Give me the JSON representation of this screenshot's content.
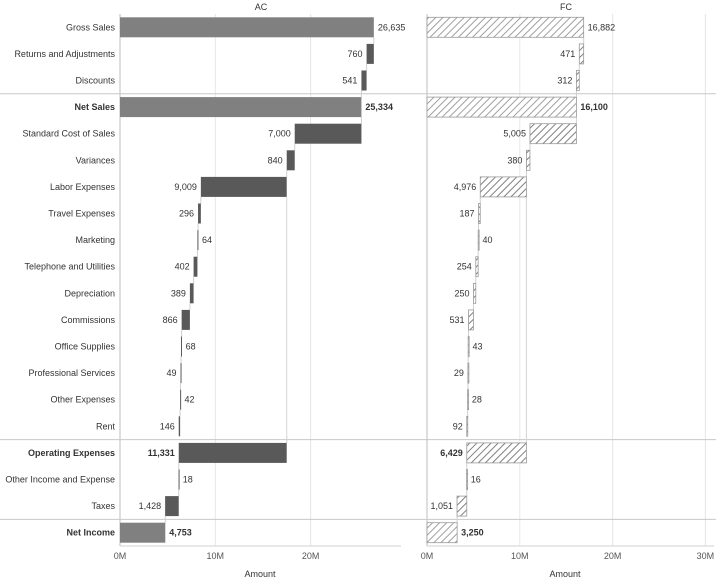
{
  "chart_data": {
    "type": "bar",
    "subtype": "waterfall",
    "units": "thousands (axis in millions)",
    "categories": [
      "Gross Sales",
      "Returns and Adjustments",
      "Discounts",
      "Net Sales",
      "Standard Cost of Sales",
      "Variances",
      "Labor Expenses",
      "Travel Expenses",
      "Marketing",
      "Telephone and Utilities",
      "Depreciation",
      "Commissions",
      "Office Supplies",
      "Professional Services",
      "Other Expenses",
      "Rent",
      "Operating Expenses",
      "Other Income and Expense",
      "Taxes",
      "Net Income"
    ],
    "row_kinds": [
      "total",
      "delta",
      "delta",
      "total",
      "delta",
      "delta",
      "delta",
      "delta",
      "delta",
      "delta",
      "delta",
      "delta",
      "delta",
      "delta",
      "delta",
      "delta",
      "subtotal",
      "delta",
      "delta",
      "total"
    ],
    "bold_rows": [
      "Net Sales",
      "Operating Expenses",
      "Net Income"
    ],
    "separators_after": [
      "Discounts",
      "Rent",
      "Taxes"
    ],
    "series": [
      {
        "name": "AC",
        "style": "solid",
        "values": [
          26635,
          760,
          541,
          25334,
          7000,
          840,
          9009,
          296,
          64,
          402,
          389,
          866,
          68,
          49,
          42,
          146,
          11331,
          18,
          1428,
          4753
        ],
        "labels": [
          "26,635",
          "760",
          "541",
          "25,334",
          "7,000",
          "840",
          "9,009",
          "296",
          "64",
          "402",
          "389",
          "866",
          "68",
          "49",
          "42",
          "146",
          "11,331",
          "18",
          "1,428",
          "4,753"
        ]
      },
      {
        "name": "FC",
        "style": "hatched",
        "values": [
          16882,
          471,
          312,
          16100,
          5005,
          380,
          4976,
          187,
          40,
          254,
          250,
          531,
          43,
          29,
          28,
          92,
          6429,
          16,
          1051,
          3250
        ],
        "labels": [
          "16,882",
          "471",
          "312",
          "16,100",
          "5,005",
          "380",
          "4,976",
          "187",
          "40",
          "254",
          "250",
          "531",
          "43",
          "29",
          "28",
          "92",
          "6,429",
          "16",
          "1,051",
          "3,250"
        ]
      }
    ],
    "xlabel": "Amount",
    "xticks": [
      "0M",
      "10M",
      "20M",
      "30M"
    ],
    "xlim_millions": [
      0,
      30
    ],
    "grid": true,
    "colors": {
      "total": "#808080",
      "delta": "#595959",
      "hatch": "#aaaaaa",
      "grid": "#e6e6e6",
      "separator": "#c8c8c8"
    }
  }
}
